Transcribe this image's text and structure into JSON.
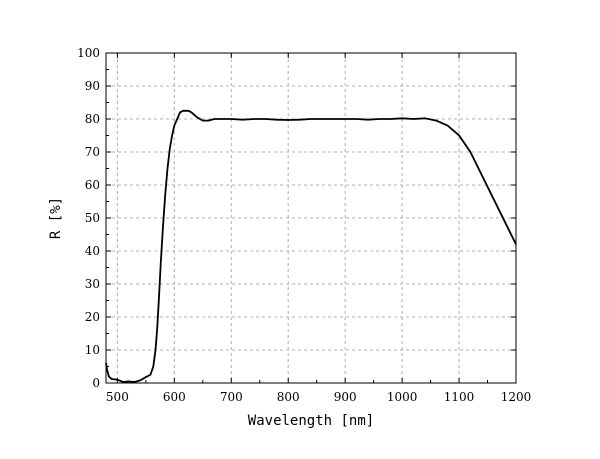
{
  "chart_data": {
    "type": "line",
    "title": "",
    "xlabel": "Wavelength [nm]",
    "ylabel": "R [%]",
    "xlim": [
      480,
      1200
    ],
    "ylim": [
      0,
      100
    ],
    "x_ticks": [
      500,
      600,
      700,
      800,
      900,
      1000,
      1100,
      1200
    ],
    "y_ticks": [
      0,
      10,
      20,
      30,
      40,
      50,
      60,
      70,
      80,
      90,
      100
    ],
    "grid": true,
    "legend": "none",
    "line_color": "#000000",
    "grid_color": "#b0b0b0",
    "series": [
      {
        "x": [
          480,
          482,
          485,
          490,
          500,
          510,
          520,
          530,
          540,
          550,
          558,
          563,
          567,
          570,
          573,
          576,
          580,
          584,
          588,
          592,
          596,
          600,
          605,
          610,
          615,
          620,
          625,
          630,
          640,
          650,
          660,
          670,
          680,
          690,
          700,
          720,
          740,
          760,
          780,
          800,
          820,
          840,
          860,
          880,
          900,
          920,
          940,
          960,
          980,
          1000,
          1020,
          1040,
          1060,
          1080,
          1100,
          1120,
          1140,
          1160,
          1180,
          1200
        ],
        "y": [
          6,
          4,
          2,
          1.2,
          1,
          0.3,
          0.5,
          0.3,
          0.8,
          1.8,
          2.5,
          5,
          10,
          17,
          26,
          36,
          47,
          57,
          65,
          71,
          75,
          78,
          80,
          82,
          82.5,
          82.5,
          82.5,
          82,
          80.5,
          79.5,
          79.5,
          80,
          80,
          80,
          80,
          79.8,
          80,
          80,
          79.8,
          79.7,
          79.8,
          80,
          80,
          80,
          80,
          80,
          79.8,
          80,
          80,
          80.2,
          80,
          80.2,
          79.5,
          78,
          75,
          70,
          63,
          56,
          49,
          42
        ]
      }
    ]
  }
}
